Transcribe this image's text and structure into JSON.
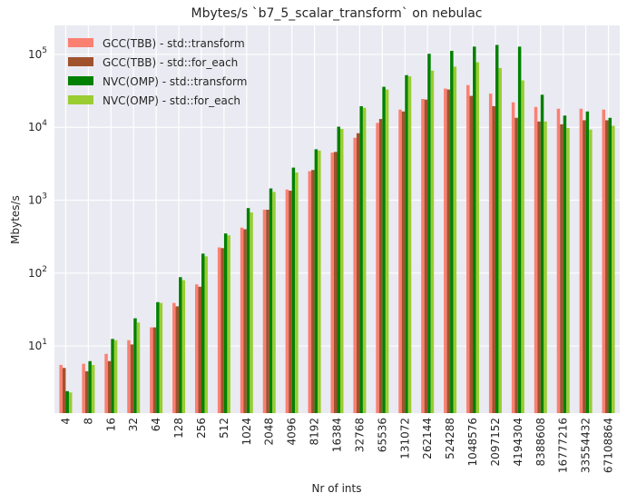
{
  "chart_data": {
    "type": "bar",
    "title": "Mbytes/s `b7_5_scalar_transform` on nebulac",
    "xlabel": "Nr of ints",
    "ylabel": "Mbytes/s",
    "yscale": "log",
    "ylim": [
      1.2,
      250000
    ],
    "yticks": [
      {
        "value": 10,
        "base": "10",
        "exp": "1"
      },
      {
        "value": 100,
        "base": "10",
        "exp": "2"
      },
      {
        "value": 1000,
        "base": "10",
        "exp": "3"
      },
      {
        "value": 10000,
        "base": "10",
        "exp": "4"
      },
      {
        "value": 100000,
        "base": "10",
        "exp": "5"
      }
    ],
    "grid": true,
    "legend_position": "top-left",
    "categories": [
      "4",
      "8",
      "16",
      "32",
      "64",
      "128",
      "256",
      "512",
      "1024",
      "2048",
      "4096",
      "8192",
      "16384",
      "32768",
      "65536",
      "131072",
      "262144",
      "524288",
      "1048576",
      "2097152",
      "4194304",
      "8388608",
      "16777216",
      "33554432",
      "67108864"
    ],
    "series": [
      {
        "name": "GCC(TBB) - std::transform",
        "color": "#fa8072",
        "values": [
          5.5,
          5.7,
          7.8,
          12,
          18,
          39,
          70,
          225,
          420,
          740,
          1400,
          2500,
          4500,
          7200,
          11500,
          17500,
          24500,
          34000,
          38000,
          29000,
          22000,
          19000,
          18000,
          18000,
          17500
        ]
      },
      {
        "name": "GCC(TBB) - std::for_each",
        "color": "#a0522d",
        "values": [
          5.0,
          4.5,
          6.2,
          10.5,
          18,
          35,
          65,
          220,
          400,
          740,
          1350,
          2600,
          4600,
          8300,
          13000,
          16500,
          24000,
          33000,
          27000,
          19500,
          13500,
          12000,
          11000,
          12500,
          12500
        ]
      },
      {
        "name": "NVC(OMP) - std::transform",
        "color": "#008000",
        "values": [
          2.4,
          6.2,
          12.5,
          24,
          40,
          88,
          185,
          350,
          780,
          1450,
          2800,
          5000,
          10200,
          19500,
          36000,
          52000,
          102000,
          112000,
          128000,
          135000,
          128000,
          28000,
          14500,
          16500,
          13500
        ]
      },
      {
        "name": "NVC(OMP) - std::for_each",
        "color": "#9acd32",
        "values": [
          2.3,
          5.5,
          12,
          21,
          39,
          80,
          170,
          330,
          680,
          1300,
          2400,
          4800,
          9500,
          18500,
          33000,
          50000,
          60000,
          68000,
          78000,
          65000,
          44000,
          12000,
          9800,
          9300,
          10500
        ]
      }
    ]
  }
}
